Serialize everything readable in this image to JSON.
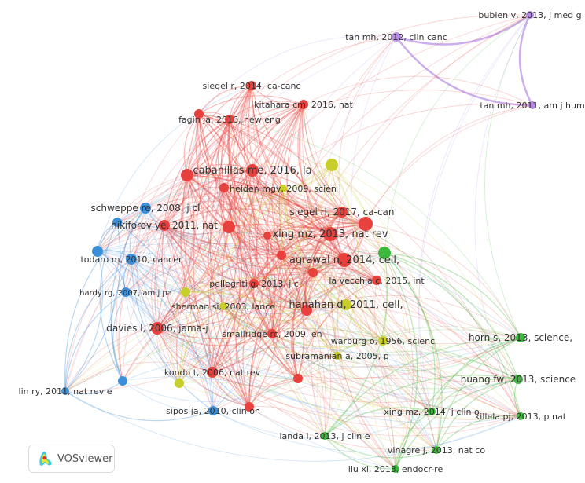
{
  "clusters": {
    "red": "#e8413d",
    "green": "#3cb93c",
    "blue": "#3b8fd9",
    "yellow": "#c9cf2a",
    "purple": "#b68ae6"
  },
  "nodes": [
    {
      "label": "tan mh, 2012, clin canc",
      "cluster": "purple"
    },
    {
      "label": "bubien v, 2013, j med g",
      "cluster": "purple"
    },
    {
      "label": "tan mh, 2011, am j hum",
      "cluster": "purple"
    },
    {
      "label": "siegel r, 2014, ca-canc",
      "cluster": "red"
    },
    {
      "label": "kitahara cm, 2016, nat",
      "cluster": "red"
    },
    {
      "label": "fagin ja, 2016, new eng",
      "cluster": "red"
    },
    {
      "label": "cabanillas me, 2016, la",
      "cluster": "red"
    },
    {
      "label": "heiden mgv, 2009, scien",
      "cluster": "yellow"
    },
    {
      "label": "siegel rl, 2017, ca-can",
      "cluster": "red"
    },
    {
      "label": "xing mz, 2013, nat rev",
      "cluster": "red"
    },
    {
      "label": "schweppe re, 2008, j cl",
      "cluster": "blue"
    },
    {
      "label": "nikiforov ye, 2011, nat",
      "cluster": "red"
    },
    {
      "label": "todaro m, 2010, cancer",
      "cluster": "blue"
    },
    {
      "label": "agrawal n, 2014, cell,",
      "cluster": "red"
    },
    {
      "label": "la vecchia c, 2015, int",
      "cluster": "red"
    },
    {
      "label": "pellegriti g, 2013, j c",
      "cluster": "red"
    },
    {
      "label": "hardy rg, 2007, am j pa",
      "cluster": "blue"
    },
    {
      "label": "sherman si, 2003, lance",
      "cluster": "yellow"
    },
    {
      "label": "hanahan d, 2011, cell,",
      "cluster": "yellow"
    },
    {
      "label": "davies l, 2006, jama-j",
      "cluster": "red"
    },
    {
      "label": "smallridge rc, 2009, en",
      "cluster": "red"
    },
    {
      "label": "warburg o, 1956, scienc",
      "cluster": "yellow"
    },
    {
      "label": "subramanian a, 2005, p",
      "cluster": "yellow"
    },
    {
      "label": "horn s, 2013, science,",
      "cluster": "green"
    },
    {
      "label": "kondo t, 2006, nat rev",
      "cluster": "red"
    },
    {
      "label": "huang fw, 2013, science",
      "cluster": "green"
    },
    {
      "label": "lin ry, 2011, nat rev e",
      "cluster": "blue"
    },
    {
      "label": "sipos ja, 2010, clin on",
      "cluster": "blue"
    },
    {
      "label": "xing mz, 2014, j clin o",
      "cluster": "green"
    },
    {
      "label": "killela pj, 2013, p nat",
      "cluster": "green"
    },
    {
      "label": "landa i, 2013, j clin e",
      "cluster": "green"
    },
    {
      "label": "vinagre j, 2013, nat co",
      "cluster": "green"
    },
    {
      "label": "liu xl, 2013, endocr-re",
      "cluster": "green"
    },
    {
      "label": "",
      "cluster": "red"
    },
    {
      "label": "",
      "cluster": "red"
    },
    {
      "label": "",
      "cluster": "red"
    },
    {
      "label": "",
      "cluster": "yellow"
    },
    {
      "label": "",
      "cluster": "red"
    },
    {
      "label": "",
      "cluster": "blue"
    },
    {
      "label": "",
      "cluster": "red"
    },
    {
      "label": "",
      "cluster": "blue"
    },
    {
      "label": "",
      "cluster": "red"
    },
    {
      "label": "",
      "cluster": "green"
    },
    {
      "label": "",
      "cluster": "red"
    },
    {
      "label": "",
      "cluster": "yellow"
    },
    {
      "label": "",
      "cluster": "red"
    },
    {
      "label": "",
      "cluster": "yellow"
    },
    {
      "label": "",
      "cluster": "blue"
    },
    {
      "label": "",
      "cluster": "red"
    },
    {
      "label": "",
      "cluster": "red"
    },
    {
      "label": "",
      "cluster": "red"
    }
  ],
  "logo": {
    "text": "VOSviewer"
  }
}
